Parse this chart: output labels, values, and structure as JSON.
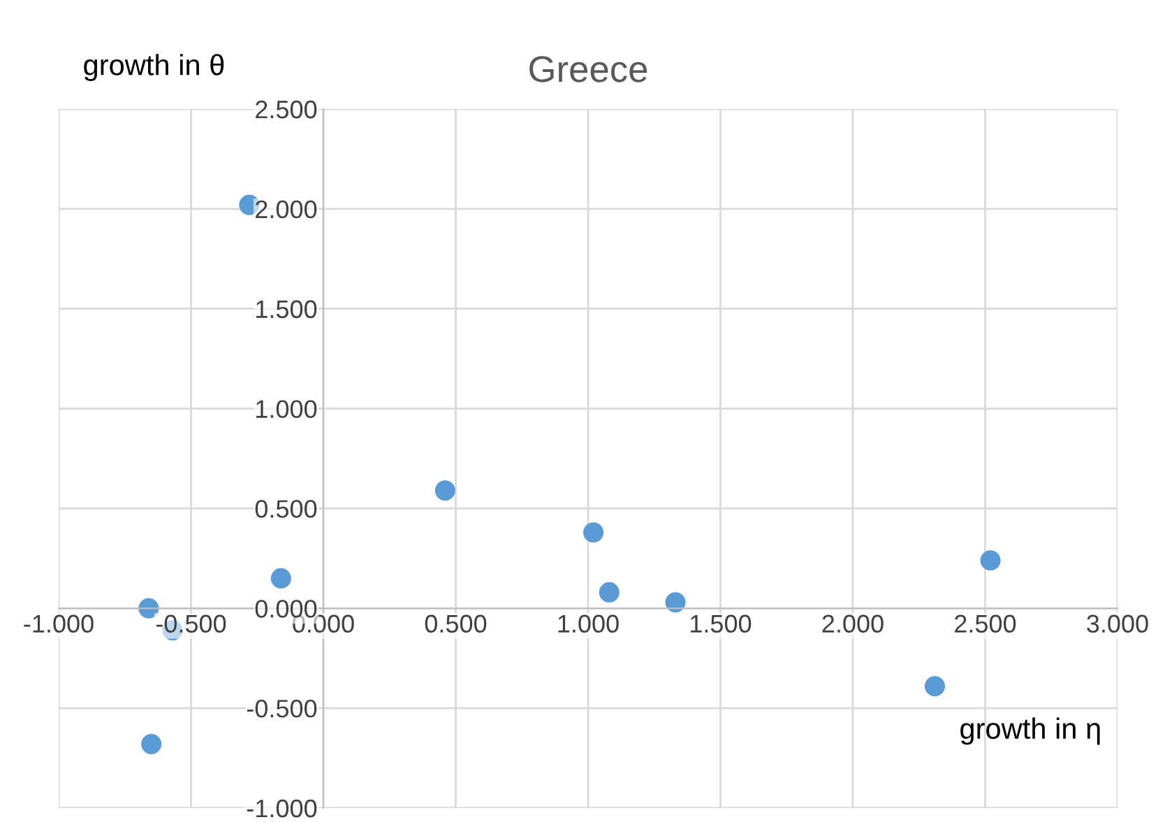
{
  "chart_data": {
    "type": "scatter",
    "title": "Greece",
    "xlabel": "growth in η",
    "ylabel": "growth in θ",
    "x": [
      -0.28,
      0.46,
      1.02,
      1.08,
      1.33,
      -0.16,
      -0.66,
      -0.57,
      -0.65,
      2.31,
      2.52
    ],
    "series": [
      {
        "color": "#5b9bd5",
        "values": [
          2.02,
          0.59,
          0.38,
          0.08,
          0.03,
          0.15,
          0.0,
          -0.11,
          -0.68,
          -0.39,
          0.24
        ]
      }
    ],
    "xlim": [
      -1,
      3
    ],
    "ylim": [
      -1,
      2.5
    ],
    "xticks": [
      {
        "value": -1,
        "label": "-1.000"
      },
      {
        "value": -0.5,
        "label": "-0.500"
      },
      {
        "value": 0,
        "label": "0.000"
      },
      {
        "value": 0.5,
        "label": "0.500"
      },
      {
        "value": 1,
        "label": "1.000"
      },
      {
        "value": 1.5,
        "label": "1.500"
      },
      {
        "value": 2,
        "label": "2.000"
      },
      {
        "value": 2.5,
        "label": "2.500"
      },
      {
        "value": 3,
        "label": "3.000"
      }
    ],
    "yticks": [
      {
        "value": -1,
        "label": "-1.000"
      },
      {
        "value": -0.5,
        "label": "-0.500"
      },
      {
        "value": 0,
        "label": "0.000"
      },
      {
        "value": 0.5,
        "label": "0.500"
      },
      {
        "value": 1,
        "label": "1.000"
      },
      {
        "value": 1.5,
        "label": "1.500"
      },
      {
        "value": 2,
        "label": "2.000"
      },
      {
        "value": 2.5,
        "label": "2.500"
      }
    ],
    "grid": true,
    "marker": "circle"
  }
}
